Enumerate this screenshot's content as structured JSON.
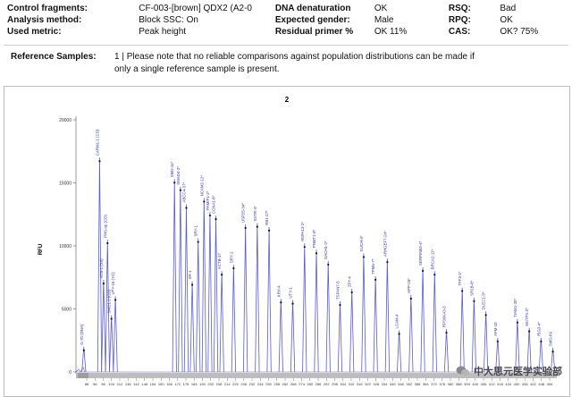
{
  "header": {
    "rows": [
      {
        "label1": "Control fragments:",
        "value1": "CF-003-[brown] QDX2 (A2-0",
        "label2": "DNA denaturation",
        "value2": "OK",
        "label3": "RSQ:",
        "value3": "Bad"
      },
      {
        "label1": "Analysis method:",
        "value1": "Block SSC: On",
        "label2": "Expected gender:",
        "value2": "Male",
        "label3": "RPQ:",
        "value3": "OK"
      },
      {
        "label1": "Used metric:",
        "value1": "Peak height",
        "label2": "Residual primer %",
        "value2": "OK 11%",
        "label3": "CAS:",
        "value3": "OK? 75%"
      }
    ]
  },
  "reference": {
    "label": "Reference Samples:",
    "text": "1 | Please note that no reliable comparisons against population distributions can be made if only a single reference sample is present."
  },
  "watermark": {
    "text": "中大思元医学实验部",
    "icon": "wechat-icon"
  },
  "colors": {
    "peak_line": "#5b5bd6",
    "peak_marker": "#111111",
    "label_text": "#3333aa",
    "axis": "#555555",
    "ruler": "#bdbdbd"
  },
  "chart_data": {
    "type": "line",
    "title": "2",
    "ylabel": "RFU",
    "ylim": [
      0,
      20000
    ],
    "yticks": [
      "20000",
      "15000",
      "10000",
      "5000",
      "0"
    ],
    "xticks": [
      "88",
      "96",
      "98",
      "104",
      "112",
      "136",
      "142",
      "148",
      "154",
      "160",
      "166",
      "172",
      "178",
      "184",
      "190",
      "202",
      "208",
      "214",
      "220",
      "226",
      "232",
      "244",
      "250",
      "256",
      "262",
      "268",
      "274",
      "280",
      "286",
      "292",
      "298",
      "304",
      "310",
      "316",
      "322",
      "328",
      "334",
      "340",
      "346",
      "352",
      "358",
      "364",
      "370",
      "376",
      "382",
      "388",
      "394",
      "400",
      "406",
      "412",
      "418",
      "424",
      "430",
      "436",
      "442",
      "448",
      "454"
    ],
    "peaks": [
      {
        "label": "G-70 (DNA)",
        "x": 90,
        "y": 2000
      },
      {
        "label": "CARM1-1 (CD)",
        "x": 98,
        "y": 17000
      },
      {
        "label": "ATB-1 (XII)",
        "x": 100,
        "y": 7300
      },
      {
        "label": "PHS-op (CD)",
        "x": 102,
        "y": 10500
      },
      {
        "label": "SMC1-1 (CD)",
        "x": 104,
        "y": 4500
      },
      {
        "label": "UTY-15 (YC)",
        "x": 106,
        "y": 6000
      },
      {
        "label": "SMD-11*",
        "x": 136,
        "y": 15300
      },
      {
        "label": "SMAD4-2*",
        "x": 139,
        "y": 14700
      },
      {
        "label": "ABCC4-37*",
        "x": 142,
        "y": 13300
      },
      {
        "label": "SR-1",
        "x": 145,
        "y": 7200
      },
      {
        "label": "SRY-1",
        "x": 148,
        "y": 10600
      },
      {
        "label": "NCAM2-12*",
        "x": 151,
        "y": 13800
      },
      {
        "label": "PAMIP1-2*",
        "x": 154,
        "y": 12700
      },
      {
        "label": "CCNA1-8*",
        "x": 157,
        "y": 12400
      },
      {
        "label": "ACTB-17",
        "x": 160,
        "y": 8000
      },
      {
        "label": "SRY-1",
        "x": 166,
        "y": 8500
      },
      {
        "label": "USP25-34*",
        "x": 172,
        "y": 11700
      },
      {
        "label": "SSTR-4*",
        "x": 178,
        "y": 11800
      },
      {
        "label": "RB1-27*",
        "x": 184,
        "y": 11500
      },
      {
        "label": "KRX-4",
        "x": 190,
        "y": 5800
      },
      {
        "label": "UTY-1",
        "x": 196,
        "y": 5700
      },
      {
        "label": "HSPA13-2*",
        "x": 202,
        "y": 10200
      },
      {
        "label": "PNMT1-8*",
        "x": 208,
        "y": 9700
      },
      {
        "label": "DACH1-2*",
        "x": 214,
        "y": 8800
      },
      {
        "label": "TSPAN7-5",
        "x": 220,
        "y": 5600
      },
      {
        "label": "ZFY-4",
        "x": 226,
        "y": 6600
      },
      {
        "label": "SUCH-4*",
        "x": 232,
        "y": 9400
      },
      {
        "label": "TPM5-7*",
        "x": 238,
        "y": 7600
      },
      {
        "label": "ARHGEF7-24*",
        "x": 244,
        "y": 9000
      },
      {
        "label": "LCAM-4",
        "x": 250,
        "y": 3300
      },
      {
        "label": "APP-15*",
        "x": 256,
        "y": 6100
      },
      {
        "label": "SERPINB3-4*",
        "x": 262,
        "y": 8300
      },
      {
        "label": "BRCA2-11*",
        "x": 268,
        "y": 8000
      },
      {
        "label": "RPS6KA3-3",
        "x": 274,
        "y": 3400
      },
      {
        "label": "TFF3-1*",
        "x": 282,
        "y": 6700
      },
      {
        "label": "SR1B-8*",
        "x": 288,
        "y": 5900
      },
      {
        "label": "DLEC1-3*",
        "x": 294,
        "y": 4800
      },
      {
        "label": "AFM-10",
        "x": 300,
        "y": 2700
      },
      {
        "label": "TIAM1-20*",
        "x": 310,
        "y": 4200
      },
      {
        "label": "MCTP1-2*",
        "x": 316,
        "y": 3500
      },
      {
        "label": "RIG3-4*",
        "x": 322,
        "y": 2700
      },
      {
        "label": "SMD-69",
        "x": 328,
        "y": 1900
      }
    ]
  }
}
